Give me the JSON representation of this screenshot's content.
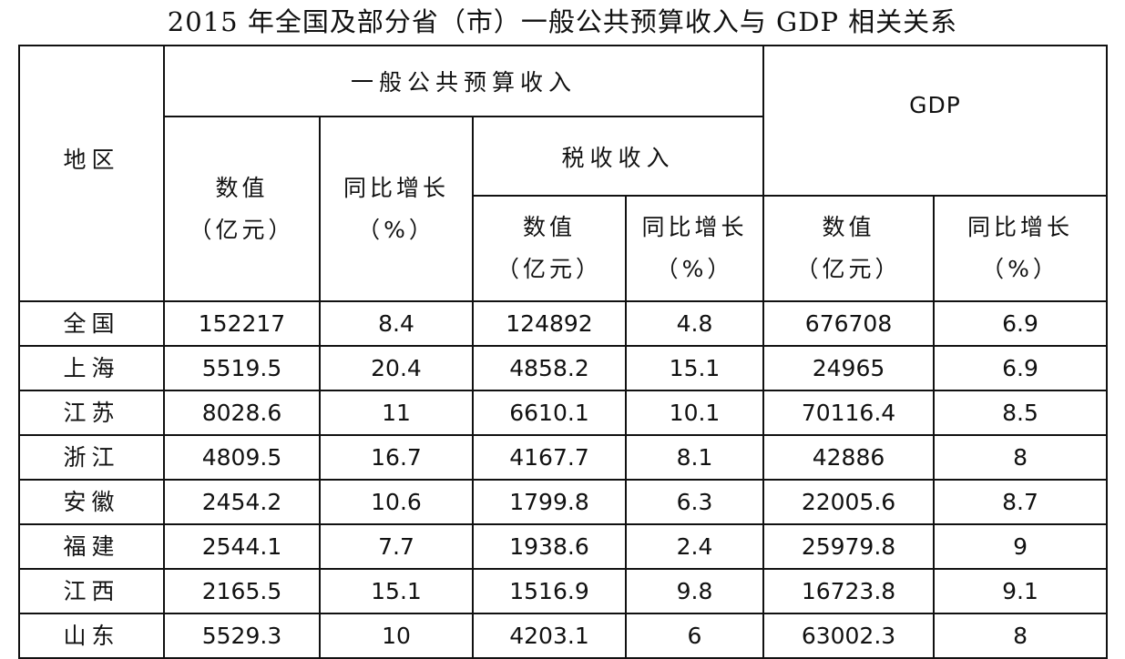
{
  "title": "2015 年全国及部分省（市）一般公共预算收入与 GDP 相关关系",
  "headers": {
    "region": "地区",
    "budget_revenue": "一般公共预算收入",
    "tax_revenue": "税收收入",
    "gdp": "GDP",
    "value_line1": "数值",
    "value_line2": "（亿元）",
    "growth_line1": "同比增长",
    "growth_line2": "（%）"
  },
  "rows": [
    {
      "region": "全国",
      "budget_value": "152217",
      "budget_growth": "8.4",
      "tax_value": "124892",
      "tax_growth": "4.8",
      "gdp_value": "676708",
      "gdp_growth": "6.9"
    },
    {
      "region": "上海",
      "budget_value": "5519.5",
      "budget_growth": "20.4",
      "tax_value": "4858.2",
      "tax_growth": "15.1",
      "gdp_value": "24965",
      "gdp_growth": "6.9"
    },
    {
      "region": "江苏",
      "budget_value": "8028.6",
      "budget_growth": "11",
      "tax_value": "6610.1",
      "tax_growth": "10.1",
      "gdp_value": "70116.4",
      "gdp_growth": "8.5"
    },
    {
      "region": "浙江",
      "budget_value": "4809.5",
      "budget_growth": "16.7",
      "tax_value": "4167.7",
      "tax_growth": "8.1",
      "gdp_value": "42886",
      "gdp_growth": "8"
    },
    {
      "region": "安徽",
      "budget_value": "2454.2",
      "budget_growth": "10.6",
      "tax_value": "1799.8",
      "tax_growth": "6.3",
      "gdp_value": "22005.6",
      "gdp_growth": "8.7"
    },
    {
      "region": "福建",
      "budget_value": "2544.1",
      "budget_growth": "7.7",
      "tax_value": "1938.6",
      "tax_growth": "2.4",
      "gdp_value": "25979.8",
      "gdp_growth": "9"
    },
    {
      "region": "江西",
      "budget_value": "2165.5",
      "budget_growth": "15.1",
      "tax_value": "1516.9",
      "tax_growth": "9.8",
      "gdp_value": "16723.8",
      "gdp_growth": "9.1"
    },
    {
      "region": "山东",
      "budget_value": "5529.3",
      "budget_growth": "10",
      "tax_value": "4203.1",
      "tax_growth": "6",
      "gdp_value": "63002.3",
      "gdp_growth": "8"
    }
  ]
}
